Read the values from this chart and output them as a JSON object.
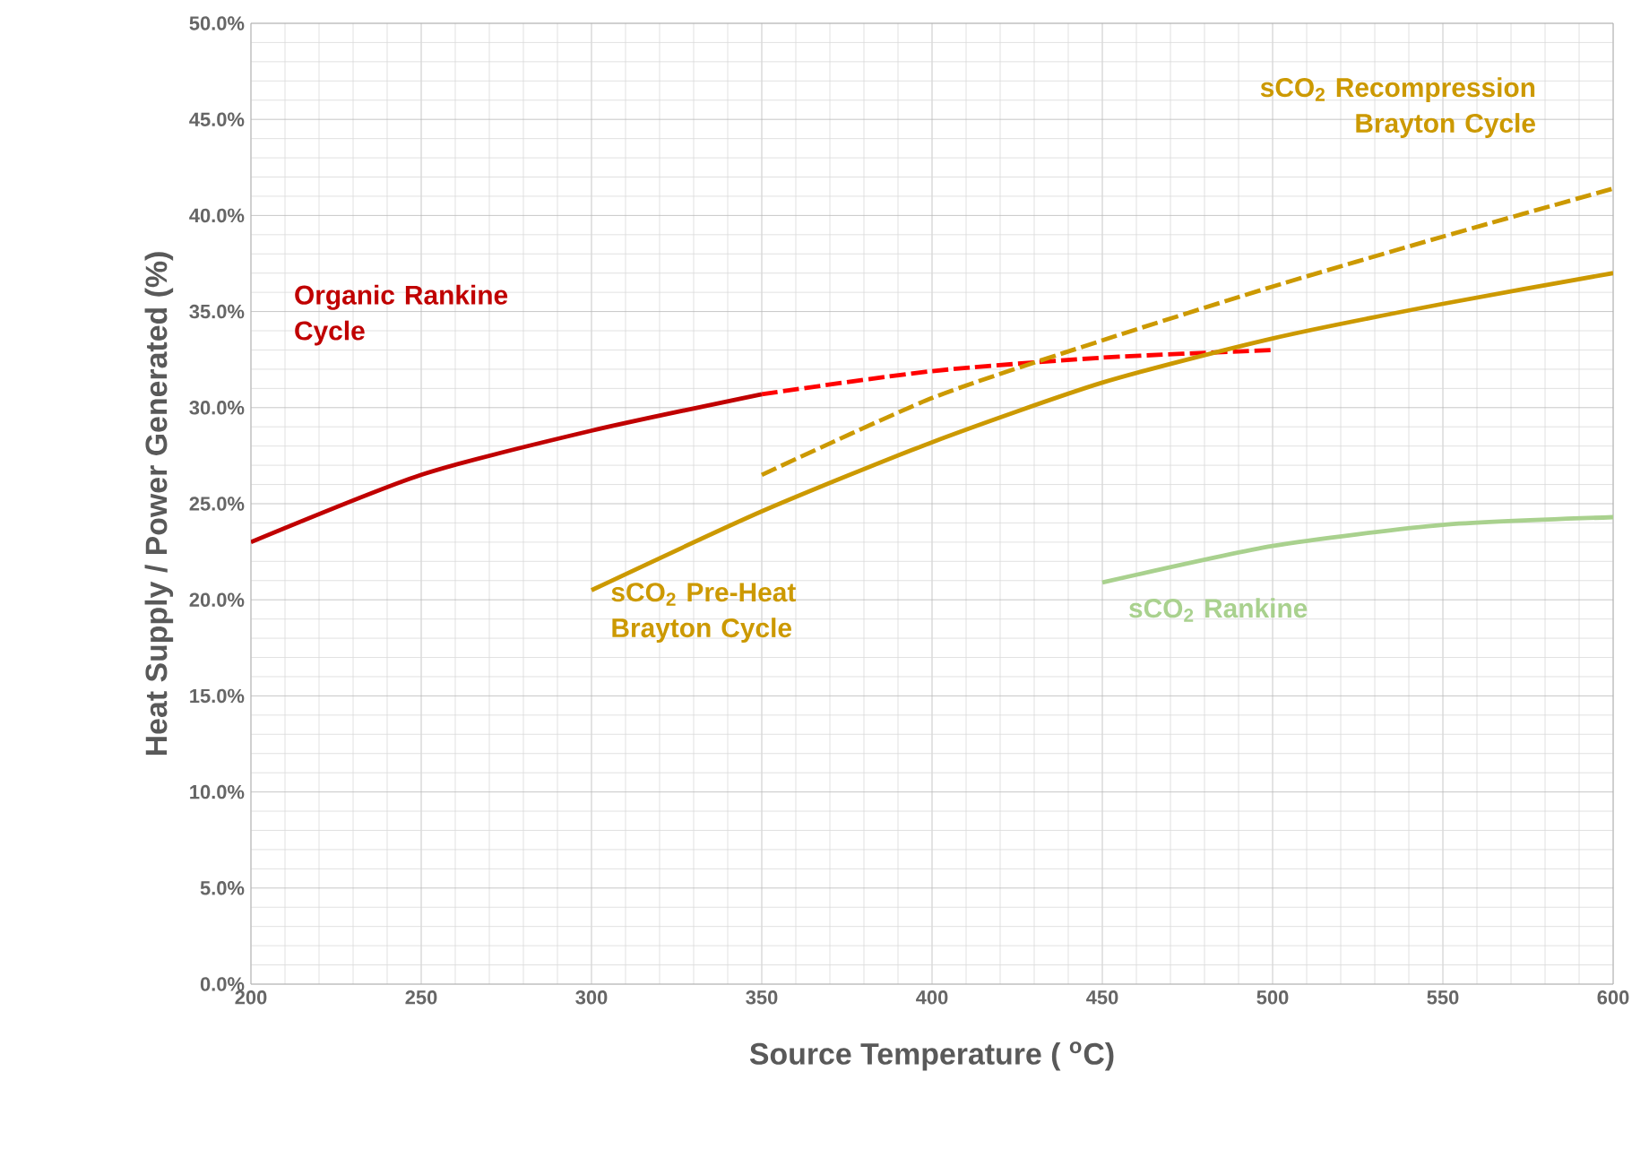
{
  "chart_data": {
    "type": "line",
    "xlabel": "Source Temperature ( $^{o}$C)",
    "ylabel": "Heat Supply / Power Generated (%)",
    "xlim": [
      200,
      600
    ],
    "xticks": [
      200,
      250,
      300,
      350,
      400,
      450,
      500,
      550,
      600
    ],
    "ylim": [
      0,
      50
    ],
    "yticks": [
      {
        "value": 0,
        "label": "0.0%"
      },
      {
        "value": 5,
        "label": "5.0%"
      },
      {
        "value": 10,
        "label": "10.0%"
      },
      {
        "value": 15,
        "label": "15.0%"
      },
      {
        "value": 20,
        "label": "20.0%"
      },
      {
        "value": 25,
        "label": "25.0%"
      },
      {
        "value": 30,
        "label": "30.0%"
      },
      {
        "value": 35,
        "label": "35.0%"
      },
      {
        "value": 40,
        "label": "40.0%"
      },
      {
        "value": 45,
        "label": "45.0%"
      },
      {
        "value": 50,
        "label": "50.0%"
      }
    ],
    "grid": true,
    "marker": "none",
    "series": [
      {
        "name": "Organic Rankine Cycle",
        "color": "#c00000",
        "line_style": "solid",
        "x": [
          200,
          250,
          300,
          350
        ],
        "values": [
          23.0,
          26.5,
          28.8,
          30.7
        ]
      },
      {
        "color": "#ff0000",
        "line_style": "dashed",
        "x": [
          350,
          400,
          450,
          500
        ],
        "values": [
          30.7,
          31.9,
          32.6,
          33.0
        ]
      },
      {
        "name": "sCO$_{2}$  Recompression Brayton Cycle",
        "color": "#cc9900",
        "line_style": "dashed",
        "x": [
          350,
          400,
          450,
          500,
          550,
          600
        ],
        "values": [
          26.5,
          30.5,
          33.5,
          36.3,
          38.9,
          41.4
        ]
      },
      {
        "name": "sCO$_{2}$  Pre-Heat Brayton Cycle",
        "color": "#cc9900",
        "line_style": "solid",
        "x": [
          300,
          350,
          400,
          450,
          500,
          550,
          600
        ],
        "values": [
          20.5,
          24.6,
          28.2,
          31.3,
          33.6,
          35.4,
          37.0
        ]
      },
      {
        "name": "sCO$_{2}$ Rankine",
        "color": "#a9d18e",
        "line_style": "solid",
        "x": [
          450,
          500,
          550,
          600
        ],
        "values": [
          20.9,
          22.8,
          23.9,
          24.3
        ]
      }
    ]
  }
}
